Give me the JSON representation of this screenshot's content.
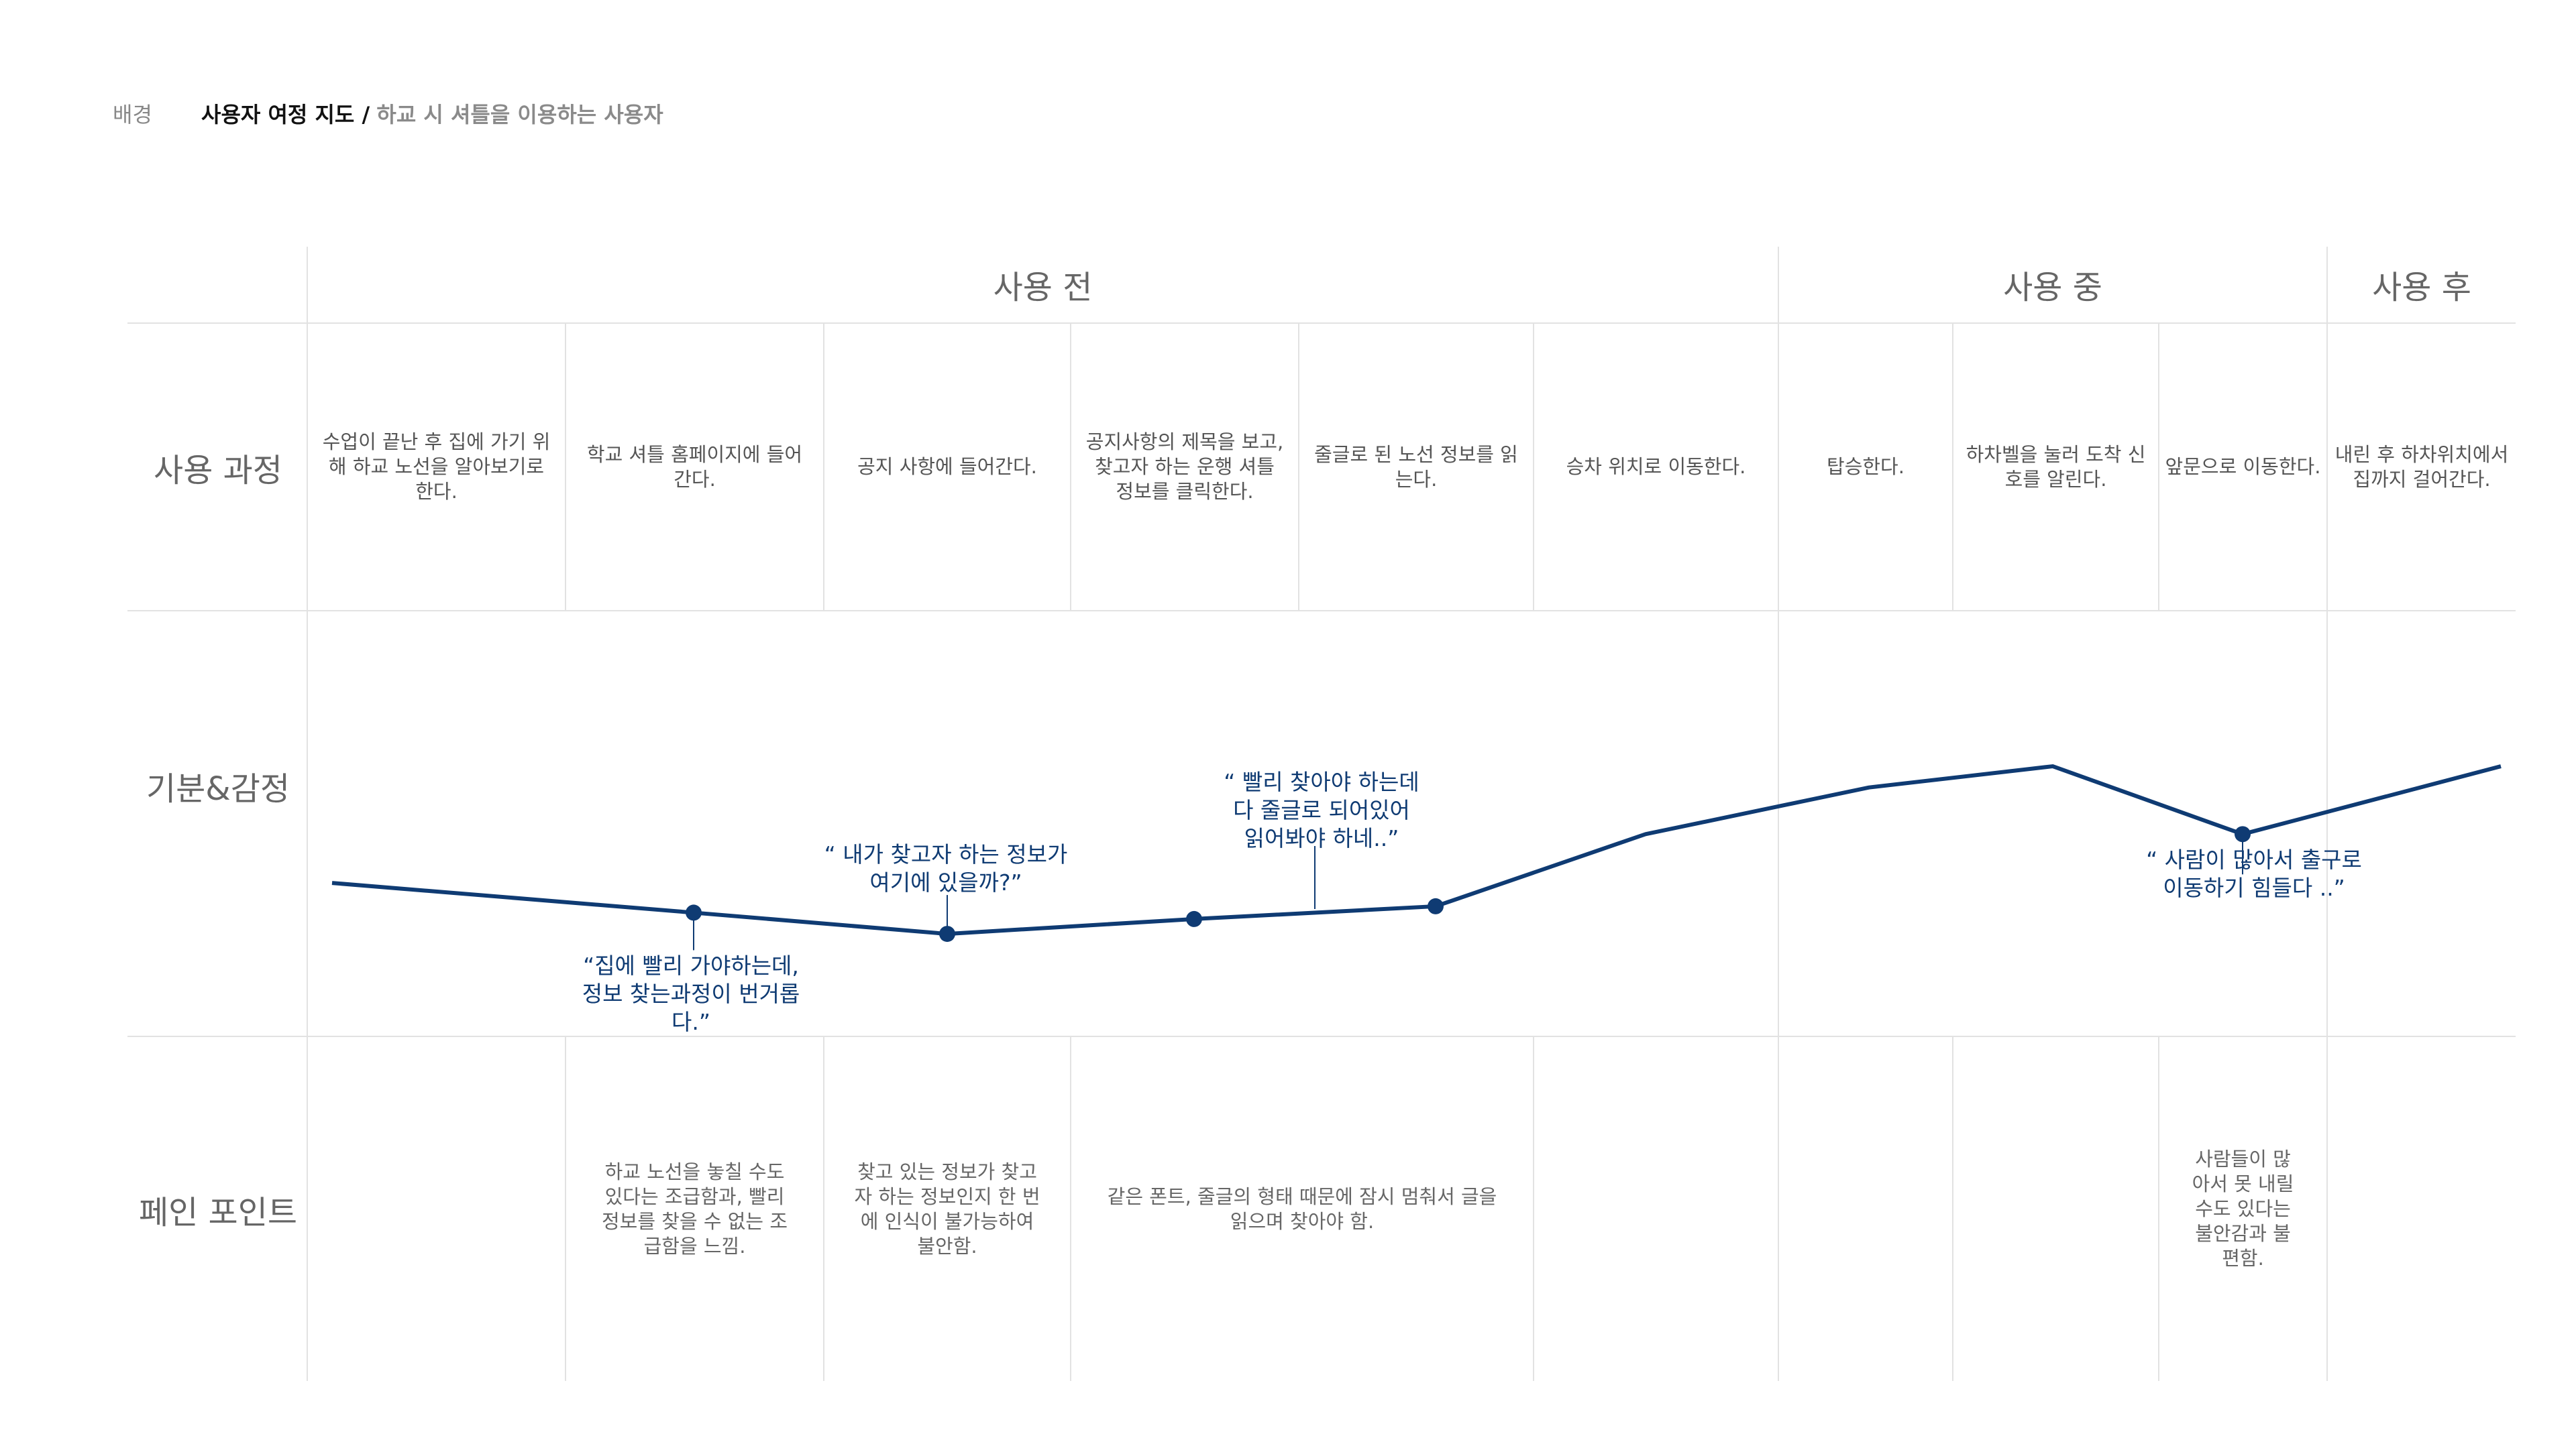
{
  "header": {
    "section": "배경",
    "title": "사용자 여정 지도 /",
    "subtitle": "하교 시 셔틀을 이용하는 사용자"
  },
  "phases": [
    {
      "label": "사용 전"
    },
    {
      "label": "사용 중"
    },
    {
      "label": "사용 후"
    }
  ],
  "row_labels": {
    "process": "사용 과정",
    "emotion": "기분&감정",
    "pain": "페인 포인트"
  },
  "steps": [
    {
      "text": "수업이 끝난 후 집에 가기 위해 하교 노선을 알아보기로 한다."
    },
    {
      "text": "학교 셔틀 홈페이지에 들어간다."
    },
    {
      "text": "공지 사항에 들어간다."
    },
    {
      "text": "공지사항의 제목을 보고, 찾고자 하는 운행 셔틀 정보를 클릭한다."
    },
    {
      "text": "줄글로 된 노선 정보를 읽는다."
    },
    {
      "text": "승차 위치로 이동한다."
    },
    {
      "text": "탑승한다."
    },
    {
      "text": "하차벨을 눌러 도착 신호를 알린다."
    },
    {
      "text": "앞문으로 이동한다."
    },
    {
      "text": "내린 후 하차위치에서 집까지 걸어간다."
    }
  ],
  "pain_points": [
    {
      "text": "하교 노선을 놓칠 수도 있다는 조급함과, 빨리 정보를 찾을 수 없는 조급함을 느낌."
    },
    {
      "text": "찾고 있는 정보가 찾고자 하는 정보인지 한 번에 인식이 불가능하여 불안함."
    },
    {
      "text": "같은 폰트, 줄글의 형태 때문에 잠시 멈춰서 글을 읽으며 찾아야 함."
    },
    {
      "text": "사람들이 많아서 못 내릴 수도 있다는 불안감과 불편함."
    }
  ],
  "quotes": [
    {
      "text": "“집에 빨리 가야하는데,\n정보 찾는과정이 번거롭\n다.”"
    },
    {
      "text": "“ 내가 찾고자 하는 정보가\n여기에 있을까?”"
    },
    {
      "text": "“ 빨리 찾아야 하는데\n다 줄글로 되어있어\n읽어봐야 하네..”"
    },
    {
      "text": "“ 사람이 많아서 출구로\n이동하기 힘들다 ..”"
    }
  ],
  "chart_data": {
    "type": "line",
    "series": [
      {
        "values": [
          -0.28,
          -0.42,
          -0.52,
          -0.45,
          -0.39,
          -0.05,
          0.17,
          0.27,
          -0.05,
          0.27
        ]
      }
    ],
    "ylim": [
      -1,
      1
    ],
    "colors": {
      "line": "#0f3b73"
    }
  }
}
